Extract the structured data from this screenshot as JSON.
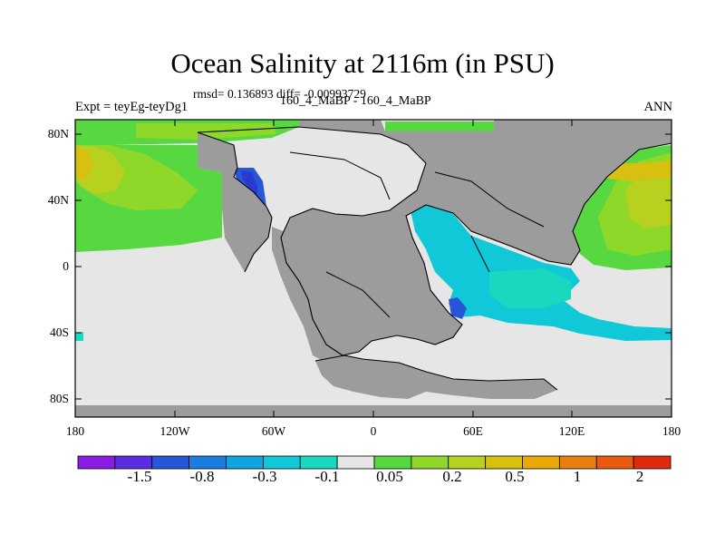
{
  "header": {
    "title": "Ocean Salinity at 2116m (in PSU)",
    "stats": "rmsd= 0.136893 diff= -0.00993729",
    "experiment": "Expt = teyEg-teyDg1",
    "runs": "160_4_MaBP - 160_4_MaBP",
    "season": "ANN"
  },
  "axes": {
    "y_ticks": [
      "80N",
      "40N",
      "0",
      "40S",
      "80S"
    ],
    "x_ticks": [
      "180",
      "120W",
      "60W",
      "0",
      "60E",
      "120E",
      "180"
    ]
  },
  "colorbar": {
    "labels": [
      "-1.5",
      "-0.8",
      "-0.3",
      "-0.1",
      "0.05",
      "0.2",
      "0.5",
      "1",
      "2"
    ],
    "colors": [
      "#8a1de0",
      "#5a2ee0",
      "#2856d8",
      "#1a7ee0",
      "#10a5e0",
      "#10c8d8",
      "#18d8c0",
      "#e6e6e6",
      "#58d840",
      "#8ed82a",
      "#b8d020",
      "#d8c010",
      "#e8a808",
      "#e88010",
      "#e85a10",
      "#e02a10"
    ]
  },
  "map": {
    "land_color": "#9c9c9c",
    "missing_color": "#e6e6e6",
    "region_colors": {
      "pacific_green": "#58d840",
      "yellow_green": "#b8d020",
      "yellow": "#d8c010",
      "arctic_green": "#8ed82a",
      "cyan": "#10c8d8",
      "teal": "#18d8c0",
      "blue": "#2856d8",
      "dark_blue": "#2a3ad0"
    }
  }
}
